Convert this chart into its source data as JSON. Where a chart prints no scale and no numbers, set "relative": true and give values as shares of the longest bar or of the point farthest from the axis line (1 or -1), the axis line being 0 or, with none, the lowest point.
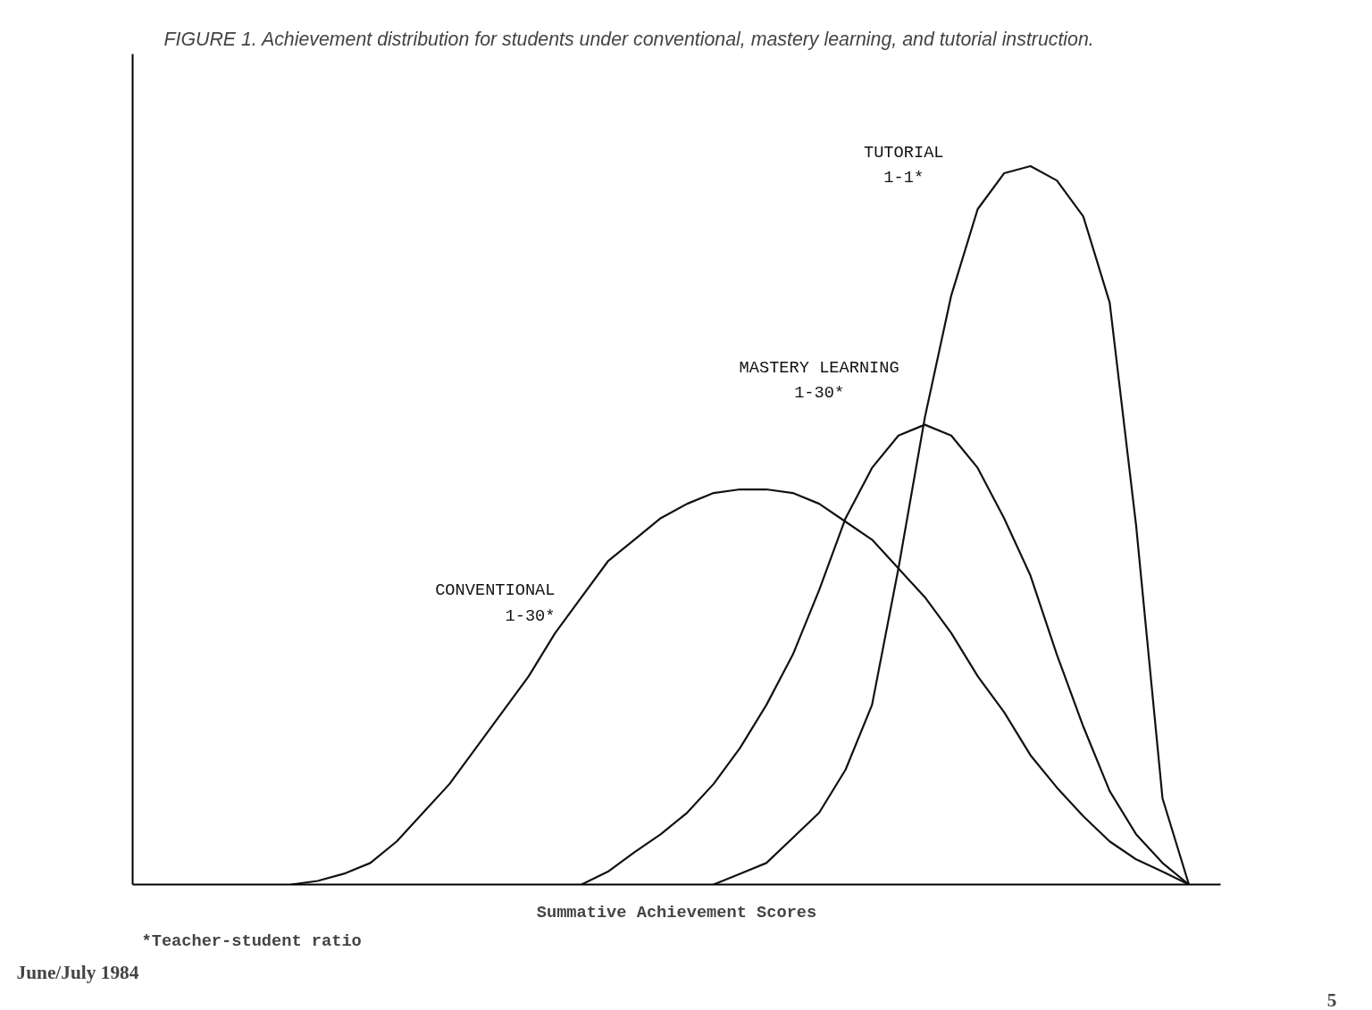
{
  "chart_data": {
    "type": "line",
    "title": "FIGURE 1. Achievement distribution for students under conventional, mastery learning, and tutorial instruction.",
    "xlabel": "Summative Achievement Scores",
    "relative": true,
    "marker": "none",
    "line_style": "solid",
    "annotations": [
      "*Teacher-student ratio",
      "June/July 1984",
      "5"
    ],
    "categories": [
      null,
      null,
      null,
      null,
      null,
      null,
      null,
      null,
      null,
      null,
      null,
      null,
      null,
      null,
      null,
      null,
      null,
      null,
      null,
      null,
      null,
      null,
      null,
      null,
      null,
      null,
      null,
      null,
      null,
      null,
      null,
      null,
      null,
      null,
      null,
      null,
      null,
      null,
      null,
      null,
      null
    ],
    "series": [
      {
        "name": "CONVENTIONAL\n1-30*",
        "color": "#111111",
        "values": [
          null,
          null,
          null,
          null,
          null,
          null,
          0,
          0.005,
          0.015,
          0.03,
          0.06,
          0.1,
          0.14,
          0.19,
          0.24,
          0.29,
          0.35,
          0.4,
          0.45,
          0.48,
          0.51,
          0.53,
          0.545,
          0.55,
          0.55,
          0.545,
          0.53,
          0.505,
          0.48,
          0.44,
          0.4,
          0.35,
          0.29,
          0.24,
          0.18,
          0.135,
          0.095,
          0.06,
          0.035,
          0.018,
          0
        ]
      },
      {
        "name": "MASTERY LEARNING\n1-30*",
        "color": "#111111",
        "values": [
          null,
          null,
          null,
          null,
          null,
          null,
          null,
          null,
          null,
          null,
          null,
          null,
          null,
          null,
          null,
          null,
          null,
          0,
          0.018,
          0.045,
          0.07,
          0.1,
          0.14,
          0.19,
          0.25,
          0.32,
          0.41,
          0.51,
          0.58,
          0.625,
          0.64,
          0.625,
          0.58,
          0.51,
          0.43,
          0.32,
          0.22,
          0.13,
          0.07,
          0.03,
          0
        ]
      },
      {
        "name": "TUTORIAL\n1-1*",
        "color": "#111111",
        "values": [
          null,
          null,
          null,
          null,
          null,
          null,
          null,
          null,
          null,
          null,
          null,
          null,
          null,
          null,
          null,
          null,
          null,
          null,
          null,
          null,
          null,
          null,
          0,
          0.015,
          0.03,
          0.065,
          0.1,
          0.16,
          0.25,
          0.44,
          0.65,
          0.82,
          0.94,
          0.99,
          1,
          0.98,
          0.93,
          0.81,
          0.5,
          0.12,
          0
        ]
      }
    ]
  }
}
